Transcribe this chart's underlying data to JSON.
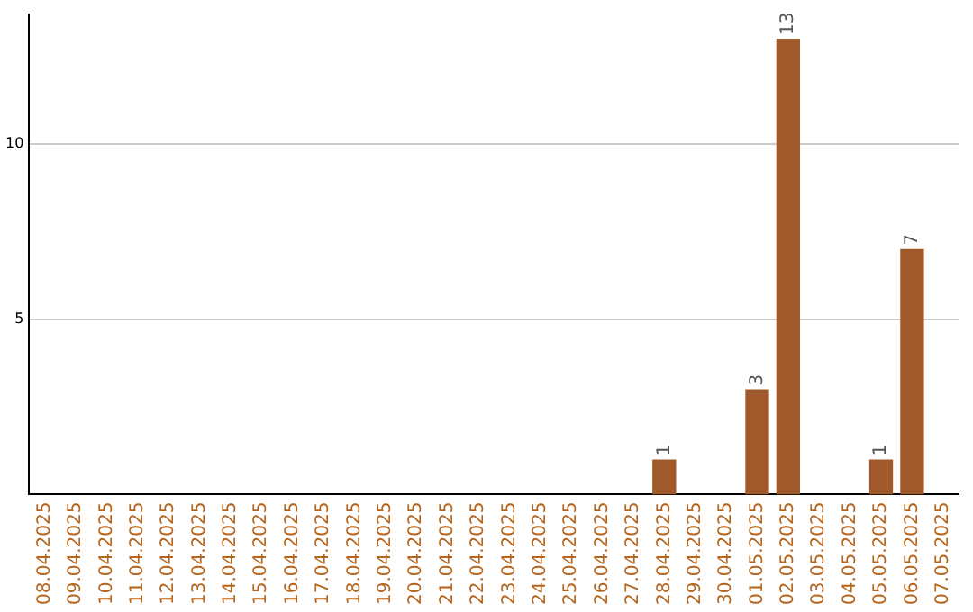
{
  "chart_data": {
    "type": "bar",
    "categories": [
      "08.04.2025",
      "09.04.2025",
      "10.04.2025",
      "11.04.2025",
      "12.04.2025",
      "13.04.2025",
      "14.04.2025",
      "15.04.2025",
      "16.04.2025",
      "17.04.2025",
      "18.04.2025",
      "19.04.2025",
      "20.04.2025",
      "21.04.2025",
      "22.04.2025",
      "23.04.2025",
      "24.04.2025",
      "25.04.2025",
      "26.04.2025",
      "27.04.2025",
      "28.04.2025",
      "29.04.2025",
      "30.04.2025",
      "01.05.2025",
      "02.05.2025",
      "03.05.2025",
      "04.05.2025",
      "05.05.2025",
      "06.05.2025",
      "07.05.2025"
    ],
    "values": [
      0,
      0,
      0,
      0,
      0,
      0,
      0,
      0,
      0,
      0,
      0,
      0,
      0,
      0,
      0,
      0,
      0,
      0,
      0,
      0,
      1,
      0,
      0,
      3,
      13,
      0,
      0,
      1,
      7,
      0
    ],
    "value_labels": [
      null,
      null,
      null,
      null,
      null,
      null,
      null,
      null,
      null,
      null,
      null,
      null,
      null,
      null,
      null,
      null,
      null,
      null,
      null,
      null,
      "1",
      null,
      null,
      "3",
      "13",
      null,
      null,
      "1",
      "7",
      null
    ],
    "color": "#a0592a",
    "ylim": [
      0,
      13.7
    ],
    "yticks": [
      5,
      10
    ],
    "grid": "y"
  }
}
